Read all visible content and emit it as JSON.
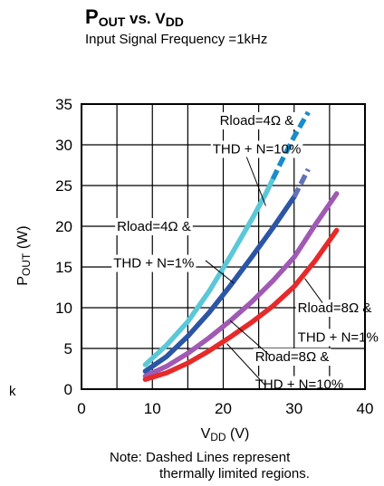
{
  "chart_data": {
    "type": "line",
    "title": {
      "main": "P",
      "main_sub": "OUT",
      "vs": "vs. V",
      "vs_sub": "DD"
    },
    "subtitle": "Input Signal Frequency =1kHz",
    "xlabel": {
      "main": "V",
      "sub": "DD",
      "unit": "(V)"
    },
    "ylabel": {
      "main": "P",
      "sub": "OUT",
      "unit": "(W)"
    },
    "xlim": [
      0,
      40
    ],
    "ylim": [
      0,
      35
    ],
    "xticks": [
      "0",
      "10",
      "20",
      "30",
      "40"
    ],
    "yticks": [
      "0",
      "5",
      "10",
      "15",
      "20",
      "25",
      "30",
      "35"
    ],
    "grid": true,
    "series": [
      {
        "color": "#5bc8d8",
        "dash_color": "#1a8cc9",
        "x": [
          9,
          12,
          15,
          18,
          21,
          24,
          26,
          28,
          30,
          32
        ],
        "y": [
          3.0,
          5.4,
          8.3,
          12.0,
          16.3,
          20.8,
          24.0,
          27.6,
          31.0,
          34.0
        ],
        "dashed_from": 27
      },
      {
        "color": "#2b55a5",
        "dash_color": "#6272b8",
        "x": [
          9,
          12,
          15,
          18,
          21,
          24,
          27,
          30,
          32
        ],
        "y": [
          2.2,
          4.0,
          6.5,
          9.4,
          12.7,
          16.2,
          19.8,
          23.6,
          27.0
        ],
        "dashed_from": 30
      },
      {
        "color": "#a05ab4",
        "x": [
          9,
          12,
          15,
          18,
          21,
          24,
          27,
          30,
          33,
          36
        ],
        "y": [
          1.6,
          2.8,
          4.4,
          6.3,
          8.4,
          10.7,
          13.3,
          16.2,
          20.2,
          24.0
        ]
      },
      {
        "color": "#e62a2a",
        "x": [
          9,
          12,
          15,
          18,
          21,
          24,
          27,
          30,
          33,
          36
        ],
        "y": [
          1.2,
          2.0,
          3.2,
          4.7,
          6.4,
          8.2,
          10.2,
          12.6,
          15.8,
          19.5
        ]
      }
    ],
    "annotations": [
      {
        "text": "Rload=4Ω &",
        "x": 19.5,
        "y": 33.0
      },
      {
        "text": "THD + N=10%",
        "x": 18.5,
        "y": 29.5
      },
      {
        "text": "Rload=4Ω &",
        "x": 5.0,
        "y": 20.0
      },
      {
        "text": "THD + N=1%",
        "x": 4.5,
        "y": 15.5
      },
      {
        "text": "Rload=8Ω &",
        "x": 30.5,
        "y": 10.0
      },
      {
        "text": "THD + N=1%",
        "x": 30.5,
        "y": 6.4
      },
      {
        "text": "Rload=8Ω &",
        "x": 24.5,
        "y": 4.0
      },
      {
        "text": "THD + N=10%",
        "x": 24.5,
        "y": 0.6
      }
    ]
  },
  "side_text": "k",
  "note": {
    "line1": "Note: Dashed Lines represent",
    "line2": "thermally limited regions."
  }
}
